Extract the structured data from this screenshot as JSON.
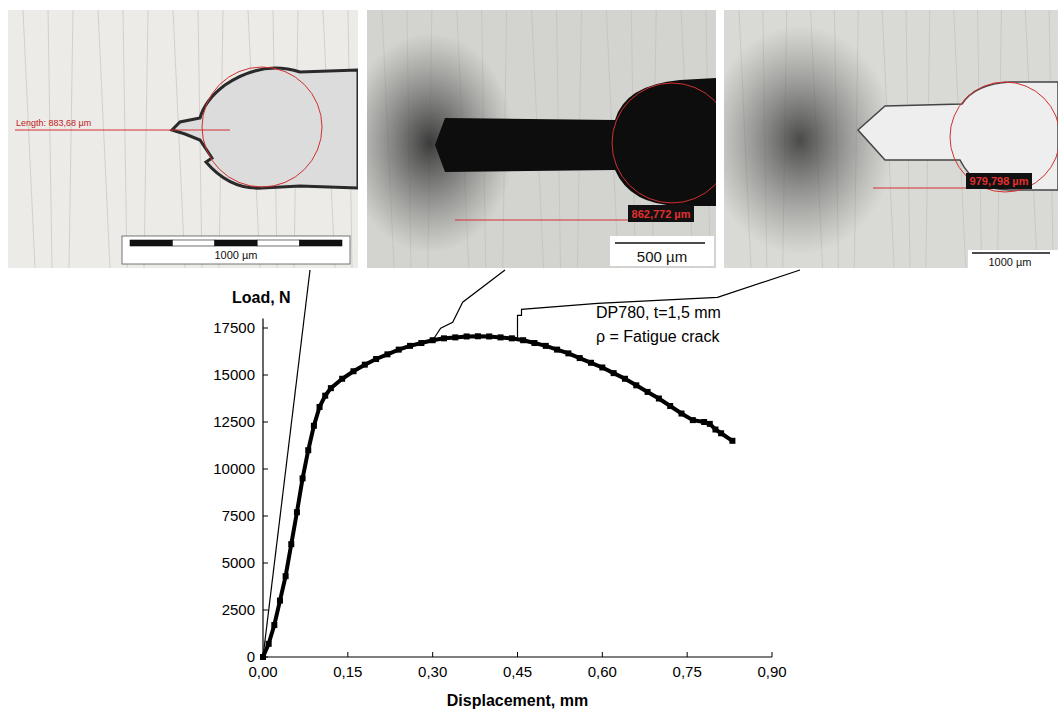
{
  "chart_data": {
    "type": "line",
    "annotations": [
      "DP780, t=1,5 mm",
      "ρ = Fatigue crack"
    ],
    "x_label": "Displacement, mm",
    "y_label": "Load, N",
    "x": [
      0,
      0.01,
      0.02,
      0.03,
      0.04,
      0.05,
      0.06,
      0.07,
      0.08,
      0.09,
      0.1,
      0.11,
      0.12,
      0.14,
      0.16,
      0.18,
      0.2,
      0.22,
      0.24,
      0.26,
      0.28,
      0.3,
      0.32,
      0.34,
      0.36,
      0.38,
      0.4,
      0.42,
      0.44,
      0.46,
      0.48,
      0.5,
      0.52,
      0.54,
      0.56,
      0.58,
      0.6,
      0.62,
      0.64,
      0.66,
      0.68,
      0.7,
      0.72,
      0.74,
      0.76,
      0.78,
      0.79,
      0.8,
      0.81,
      0.83
    ],
    "series": [
      {
        "color": "#000000",
        "marker": "square",
        "line_style": "solid",
        "values": [
          0,
          700,
          1700,
          3000,
          4300,
          6000,
          7700,
          9500,
          11000,
          12300,
          13300,
          13900,
          14300,
          14800,
          15200,
          15550,
          15850,
          16100,
          16350,
          16550,
          16700,
          16850,
          16950,
          17000,
          17050,
          17060,
          17050,
          17000,
          16950,
          16850,
          16700,
          16550,
          16350,
          16150,
          15900,
          15650,
          15400,
          15100,
          14800,
          14450,
          14100,
          13750,
          13350,
          12950,
          12600,
          12500,
          12400,
          12100,
          11900,
          11500
        ]
      }
    ],
    "xlim": [
      0,
      0.9
    ],
    "xticks": [
      {
        "value": 0,
        "label": "0,00"
      },
      {
        "value": 0.15,
        "label": "0,15"
      },
      {
        "value": 0.3,
        "label": "0,30"
      },
      {
        "value": 0.45,
        "label": "0,45"
      },
      {
        "value": 0.6,
        "label": "0,60"
      },
      {
        "value": 0.75,
        "label": "0,75"
      },
      {
        "value": 0.9,
        "label": "0,90"
      }
    ],
    "ylim": [
      0,
      18000
    ],
    "yticks": [
      0,
      2500,
      5000,
      7500,
      10000,
      12500,
      15000,
      17500
    ],
    "grid": false
  },
  "micrographs": [
    {
      "measurement": "Length: 883,68 µm",
      "scale_bar": "1000 µm",
      "x": 0,
      "y": 0
    },
    {
      "measurement": "862,772 µm",
      "scale_bar": "500 µm",
      "x": 0.3,
      "y": 16850
    },
    {
      "measurement": "979,798 µm",
      "scale_bar": "1000 µm",
      "x": 0.45,
      "y": 17000
    }
  ]
}
